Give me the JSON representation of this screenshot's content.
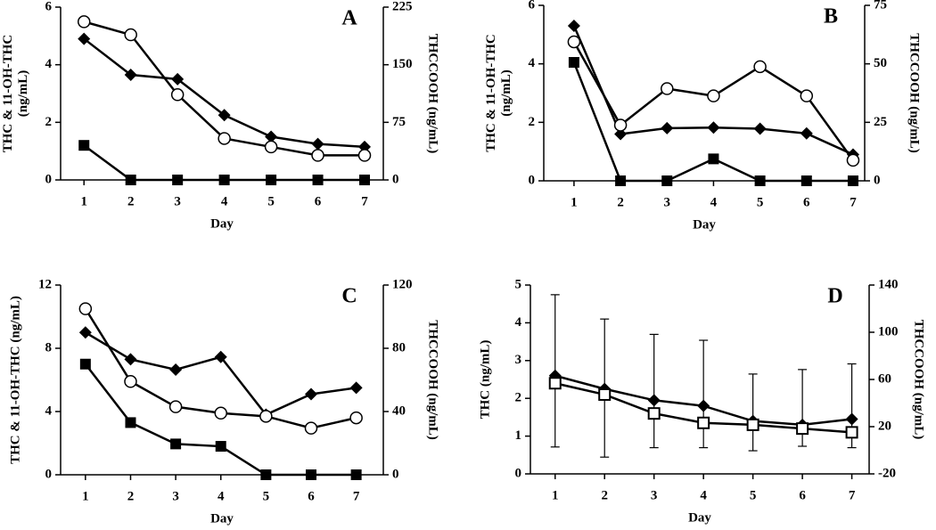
{
  "chart_data": [
    {
      "type": "line",
      "title": "A",
      "x_label": "Day",
      "y_label": [
        "THC & 11-OH-THC",
        "(ng/mL)"
      ],
      "y2_label": "THCCOOH (ng/mL)",
      "x": [
        1,
        2,
        3,
        4,
        5,
        6,
        7
      ],
      "xlim": [
        0.5,
        7.4
      ],
      "ylim": [
        0,
        6
      ],
      "yticks": [
        0,
        2,
        4,
        6
      ],
      "y2lim": [
        0,
        225
      ],
      "y2ticks": [
        0,
        75,
        150,
        225
      ],
      "series": [
        {
          "color": "#000000",
          "marker": "square",
          "values": [
            1.2,
            0,
            0,
            0,
            0,
            0,
            0
          ]
        },
        {
          "color": "#000000",
          "marker": "diamond",
          "values": [
            4.9,
            3.65,
            3.5,
            2.25,
            1.5,
            1.25,
            1.15
          ]
        },
        {
          "color": "#000000",
          "marker": "circle",
          "axis": "y2",
          "values": [
            206,
            189,
            111,
            54,
            43,
            32,
            32
          ]
        }
      ]
    },
    {
      "type": "line",
      "title": "B",
      "x_label": "Day",
      "y_label": [
        "THC & 11-OH-THC",
        "(ng/mL)"
      ],
      "y2_label": "THCCOOH (ng/mL)",
      "x": [
        1,
        2,
        3,
        4,
        5,
        6,
        7
      ],
      "xlim": [
        0.35,
        7.25
      ],
      "ylim": [
        0,
        6
      ],
      "yticks": [
        0,
        2,
        4,
        6
      ],
      "y2lim": [
        0,
        75
      ],
      "y2ticks": [
        0,
        25,
        50,
        75
      ],
      "series": [
        {
          "color": "#000000",
          "marker": "square",
          "values": [
            4.05,
            0,
            0,
            0.75,
            0,
            0,
            0
          ]
        },
        {
          "color": "#000000",
          "marker": "diamond",
          "values": [
            5.3,
            1.6,
            1.8,
            1.82,
            1.78,
            1.62,
            0.9
          ]
        },
        {
          "color": "#000000",
          "marker": "circle",
          "axis": "y2",
          "values": [
            59.4,
            23.8,
            39.4,
            36.3,
            48.8,
            36.3,
            8.8
          ]
        }
      ]
    },
    {
      "type": "line",
      "title": "C",
      "x_label": "Day",
      "y_label": [
        "THC & 11-OH-THC (ng/mL)"
      ],
      "y2_label": "THCCOOH (ng/mL)",
      "x": [
        1,
        2,
        3,
        4,
        5,
        6,
        7
      ],
      "xlim": [
        0.45,
        7.6
      ],
      "ylim": [
        0,
        12
      ],
      "yticks": [
        0,
        4,
        8,
        12
      ],
      "y2lim": [
        0,
        120
      ],
      "y2ticks": [
        0,
        40,
        80,
        120
      ],
      "series": [
        {
          "color": "#000000",
          "marker": "square",
          "values": [
            7.0,
            3.3,
            1.95,
            1.8,
            0,
            0,
            0
          ]
        },
        {
          "color": "#000000",
          "marker": "diamond",
          "values": [
            9.0,
            7.3,
            6.65,
            7.45,
            3.8,
            5.1,
            5.5
          ]
        },
        {
          "color": "#000000",
          "marker": "circle",
          "axis": "y2",
          "values": [
            105,
            59,
            43,
            39,
            37,
            29.5,
            36
          ]
        }
      ]
    },
    {
      "type": "line",
      "title": "D",
      "x_label": "Day",
      "y_label": [
        "THC (ng/mL)"
      ],
      "y2_label": "THCCOOH (ng/mL)",
      "x": [
        1,
        2,
        3,
        4,
        5,
        6,
        7
      ],
      "xlim": [
        0.5,
        7.35
      ],
      "ylim": [
        0,
        5
      ],
      "yticks": [
        0,
        1,
        2,
        3,
        4,
        5
      ],
      "y2lim": [
        -20,
        140
      ],
      "y2ticks": [
        -20,
        20,
        60,
        100,
        140
      ],
      "series": [
        {
          "color": "#000000",
          "marker": "diamond",
          "values": [
            2.6,
            2.25,
            1.95,
            1.8,
            1.4,
            1.3,
            1.45
          ]
        },
        {
          "color": "#000000",
          "marker": "open-square",
          "axis": "y2",
          "values": [
            56.8,
            47.2,
            31.2,
            23.2,
            21.6,
            18.4,
            15.2
          ],
          "error_plus": [
            75,
            64,
            67,
            70,
            43,
            50,
            58
          ],
          "error_minus": [
            54,
            53,
            29,
            21,
            22,
            15,
            13
          ]
        }
      ]
    }
  ]
}
